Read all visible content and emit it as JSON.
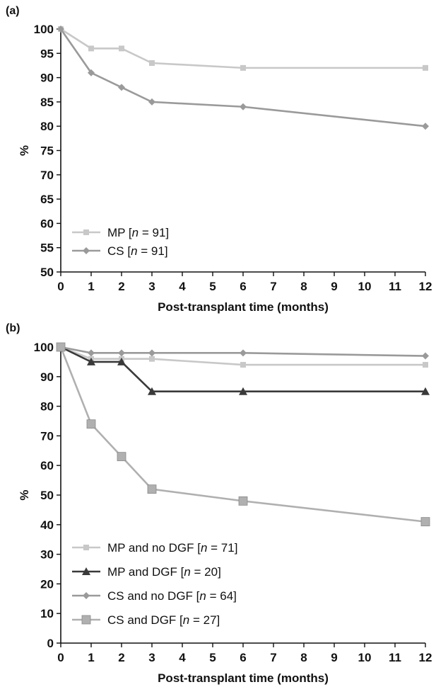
{
  "chart_data": [
    {
      "type": "line",
      "panel_label": "(a)",
      "xlabel": "Post-transplant time (months)",
      "ylabel": "%",
      "xlim": [
        0,
        12
      ],
      "ylim": [
        50,
        100
      ],
      "x_ticks": [
        "0",
        "1",
        "2",
        "3",
        "4",
        "5",
        "6",
        "7",
        "8",
        "9",
        "10",
        "11",
        "12"
      ],
      "y_ticks": [
        "50",
        "55",
        "60",
        "65",
        "70",
        "75",
        "80",
        "85",
        "90",
        "95",
        "100"
      ],
      "grid": false,
      "legend_position": "bottom-left",
      "series": [
        {
          "name": "MP [n = 91]",
          "legend_prefix": "MP [",
          "legend_italic": "n",
          "legend_suffix": " = 91]",
          "color": "#c8c8c8",
          "marker": "square",
          "x": [
            0,
            1,
            2,
            3,
            6,
            12
          ],
          "values": [
            100,
            96,
            96,
            93,
            92,
            92
          ]
        },
        {
          "name": "CS [n = 91]",
          "legend_prefix": "CS [",
          "legend_italic": "n",
          "legend_suffix": " = 91]",
          "color": "#9a9a9a",
          "marker": "diamond",
          "x": [
            0,
            1,
            2,
            3,
            6,
            12
          ],
          "values": [
            100,
            91,
            88,
            85,
            84,
            80
          ]
        }
      ]
    },
    {
      "type": "line",
      "panel_label": "(b)",
      "xlabel": "Post-transplant time (months)",
      "ylabel": "%",
      "xlim": [
        0,
        12
      ],
      "ylim": [
        0,
        100
      ],
      "x_ticks": [
        "0",
        "1",
        "2",
        "3",
        "4",
        "5",
        "6",
        "7",
        "8",
        "9",
        "10",
        "11",
        "12"
      ],
      "y_ticks": [
        "0",
        "10",
        "20",
        "30",
        "40",
        "50",
        "60",
        "70",
        "80",
        "90",
        "100"
      ],
      "grid": false,
      "legend_position": "bottom-left",
      "series": [
        {
          "name": "MP and no DGF [n = 71]",
          "legend_prefix": "MP and no DGF [",
          "legend_italic": "n",
          "legend_suffix": " = 71]",
          "color": "#c8c8c8",
          "marker": "square",
          "x": [
            0,
            1,
            2,
            3,
            6,
            12
          ],
          "values": [
            100,
            96,
            96,
            96,
            94,
            94
          ]
        },
        {
          "name": "MP and DGF [n = 20]",
          "legend_prefix": "MP and DGF [",
          "legend_italic": "n",
          "legend_suffix": " = 20]",
          "color": "#3a3a3a",
          "marker": "triangle",
          "x": [
            0,
            1,
            2,
            3,
            6,
            12
          ],
          "values": [
            100,
            95,
            95,
            85,
            85,
            85
          ]
        },
        {
          "name": "CS and no DGF [n = 64]",
          "legend_prefix": "CS and no DGF  [",
          "legend_italic": "n",
          "legend_suffix": " = 64]",
          "color": "#9a9a9a",
          "marker": "diamond",
          "x": [
            0,
            1,
            2,
            3,
            6,
            12
          ],
          "values": [
            100,
            98,
            98,
            98,
            98,
            97
          ]
        },
        {
          "name": "CS and DGF [n = 27]",
          "legend_prefix": "CS and DGF [",
          "legend_italic": "n",
          "legend_suffix": " = 27]",
          "color": "#b0b0b0",
          "marker": "bigsquare",
          "x": [
            0,
            1,
            2,
            3,
            6,
            12
          ],
          "values": [
            100,
            74,
            63,
            52,
            48,
            41
          ]
        }
      ]
    }
  ]
}
